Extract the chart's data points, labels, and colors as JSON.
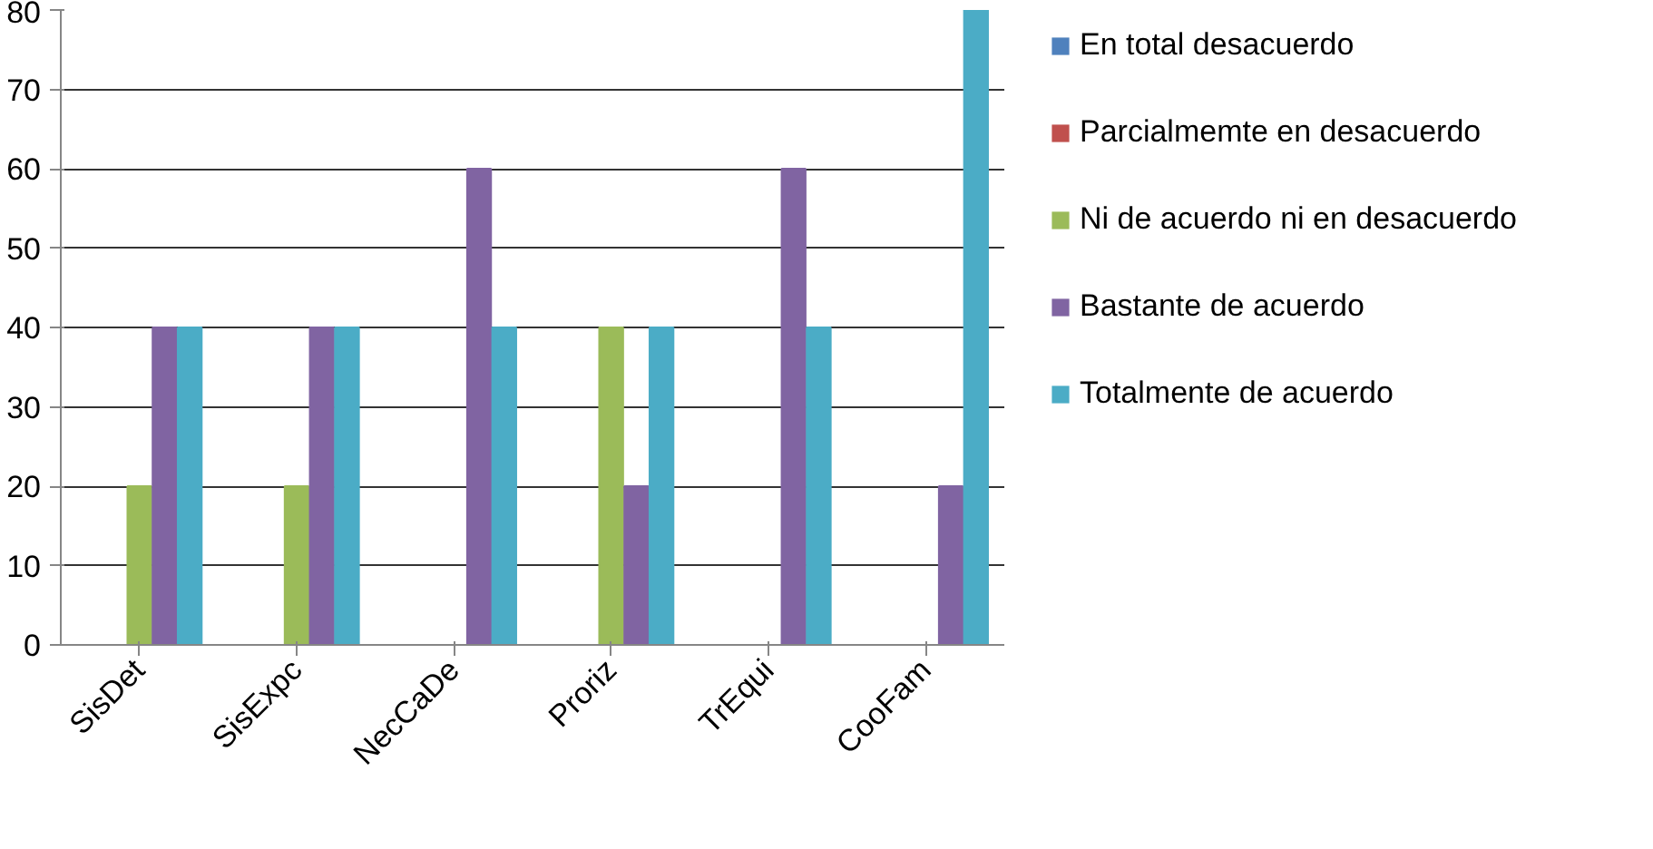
{
  "chart_data": {
    "type": "bar",
    "categories": [
      "SisDet",
      "SisExpc",
      "NecCaDe",
      "Proriz",
      "TrEqui",
      "CooFam"
    ],
    "series": [
      {
        "name": "En total desacuerdo",
        "color": "#4f81bd",
        "values": [
          0,
          0,
          0,
          0,
          0,
          0
        ]
      },
      {
        "name": "Parcialmemte en desacuerdo",
        "color": "#c0504d",
        "values": [
          0,
          0,
          0,
          0,
          0,
          0
        ]
      },
      {
        "name": "Ni de acuerdo ni en desacuerdo",
        "color": "#9bbb59",
        "values": [
          20,
          20,
          0,
          40,
          0,
          0
        ]
      },
      {
        "name": "Bastante de acuerdo",
        "color": "#8064a2",
        "values": [
          40,
          40,
          60,
          20,
          60,
          20
        ]
      },
      {
        "name": "Totalmente de acuerdo",
        "color": "#4bacc6",
        "values": [
          40,
          40,
          40,
          40,
          40,
          80
        ]
      }
    ],
    "ylim": [
      0,
      80
    ],
    "yticks": [
      0,
      10,
      20,
      30,
      40,
      50,
      60,
      70,
      80
    ],
    "grid": "y",
    "legend": "right"
  }
}
